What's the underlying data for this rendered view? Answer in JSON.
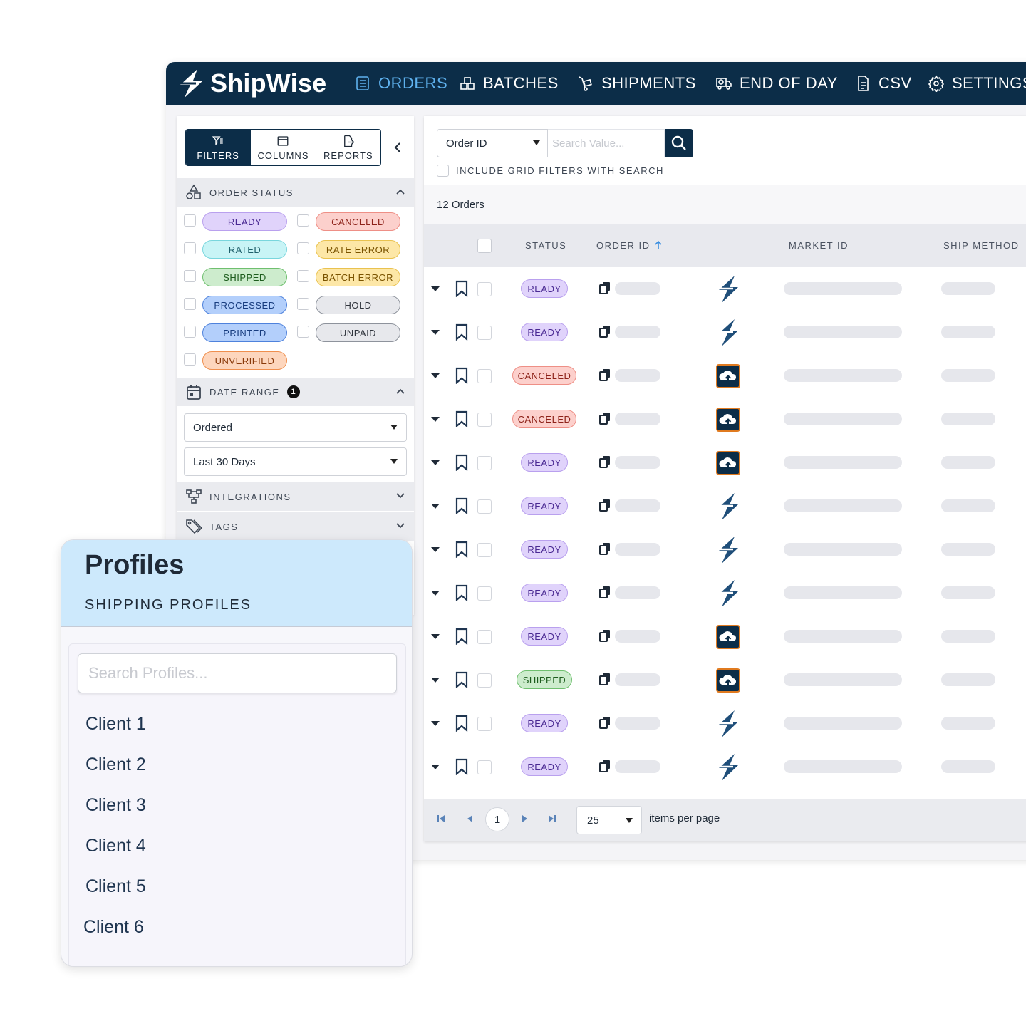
{
  "app": {
    "brand": "ShipWise",
    "nav": [
      {
        "label": "ORDERS",
        "icon": "list-icon",
        "active": true
      },
      {
        "label": "BATCHES",
        "icon": "boxes-icon",
        "active": false
      },
      {
        "label": "SHIPMENTS",
        "icon": "dolly-icon",
        "active": false
      },
      {
        "label": "END OF DAY",
        "icon": "truck-clock-icon",
        "active": false
      },
      {
        "label": "CSV",
        "icon": "file-icon",
        "active": false
      },
      {
        "label": "SETTINGS",
        "icon": "gear-icon",
        "active": false
      }
    ]
  },
  "sidebar": {
    "tabs": [
      {
        "label": "FILTERS",
        "icon": "filter-icon"
      },
      {
        "label": "COLUMNS",
        "icon": "columns-icon"
      },
      {
        "label": "REPORTS",
        "icon": "export-icon"
      }
    ],
    "order_status": {
      "title": "ORDER STATUS",
      "left": [
        "READY",
        "RATED",
        "SHIPPED",
        "PROCESSED",
        "PRINTED",
        "UNVERIFIED"
      ],
      "right": [
        "CANCELED",
        "RATE ERROR",
        "BATCH ERROR",
        "HOLD",
        "UNPAID"
      ]
    },
    "date_range": {
      "title": "DATE RANGE",
      "count": "1",
      "type_value": "Ordered",
      "range_value": "Last 30 Days"
    },
    "integrations_title": "INTEGRATIONS",
    "tags_title": "TAGS"
  },
  "search": {
    "field": "Order ID",
    "placeholder": "Search Value...",
    "include_label": "INCLUDE GRID FILTERS WITH SEARCH"
  },
  "grid": {
    "count_label": "12 Orders",
    "columns": [
      "STATUS",
      "ORDER ID",
      "MARKET ID",
      "SHIP METHOD"
    ],
    "rows": [
      {
        "status": "READY",
        "market": "shipwise"
      },
      {
        "status": "READY",
        "market": "shipwise"
      },
      {
        "status": "CANCELED",
        "market": "cloud"
      },
      {
        "status": "CANCELED",
        "market": "cloud"
      },
      {
        "status": "READY",
        "market": "cloud"
      },
      {
        "status": "READY",
        "market": "shipwise"
      },
      {
        "status": "READY",
        "market": "shipwise"
      },
      {
        "status": "READY",
        "market": "shipwise"
      },
      {
        "status": "READY",
        "market": "cloud"
      },
      {
        "status": "SHIPPED",
        "market": "cloud"
      },
      {
        "status": "READY",
        "market": "shipwise"
      },
      {
        "status": "READY",
        "market": "shipwise"
      }
    ]
  },
  "pager": {
    "page": "1",
    "per_page": "25",
    "per_page_label": "items per page"
  },
  "profiles": {
    "title": "Profiles",
    "subtitle": "SHIPPING PROFILES",
    "search_placeholder": "Search Profiles...",
    "clients": [
      "Client 1",
      "Client 2",
      "Client 3",
      "Client 4",
      "Client 5",
      "Client 6"
    ]
  },
  "colors": {
    "navy": "#0c2d48",
    "active_nav": "#5fb2ef",
    "ready": "#e0d3fb",
    "canceled": "#fcd0cc",
    "shipped": "#cdeccd",
    "rated": "#c8f4f6",
    "rate_error": "#fde7a7",
    "processed": "#b3cffb",
    "hold": "#e7e8ec",
    "unverified": "#fdd6bd",
    "profiles_header": "#cde9fc"
  }
}
